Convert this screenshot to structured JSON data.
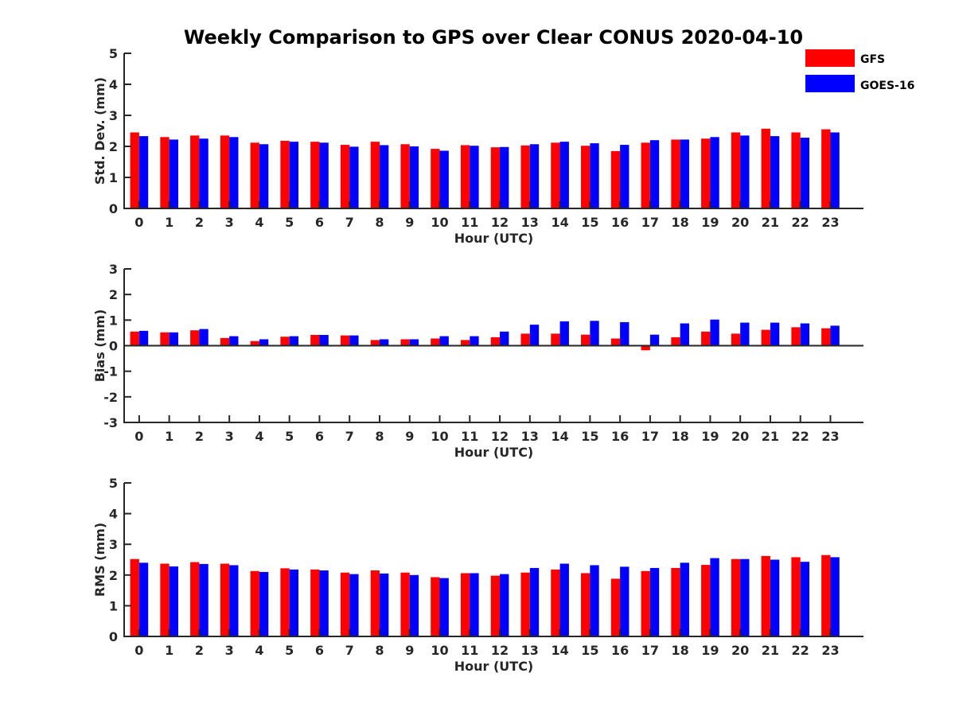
{
  "figure": {
    "title": "Weekly Comparison to GPS over Clear CONUS 2020-04-10",
    "legend": [
      {
        "name": "GFS",
        "color": "#ff0000"
      },
      {
        "name": "GOES-16",
        "color": "#0000ff"
      }
    ]
  },
  "chart_data": [
    {
      "type": "bar",
      "ylabel": "Std. Dev. (mm)",
      "xlabel": "Hour (UTC)",
      "ylim": [
        0,
        5
      ],
      "yticks": [
        0,
        1,
        2,
        3,
        4,
        5
      ],
      "categories": [
        "0",
        "1",
        "2",
        "3",
        "4",
        "5",
        "6",
        "7",
        "8",
        "9",
        "10",
        "11",
        "12",
        "13",
        "14",
        "15",
        "16",
        "17",
        "18",
        "19",
        "20",
        "21",
        "22",
        "23"
      ],
      "series": [
        {
          "name": "GFS",
          "color": "#ff0000",
          "values": [
            2.45,
            2.3,
            2.35,
            2.35,
            2.12,
            2.18,
            2.15,
            2.05,
            2.15,
            2.07,
            1.92,
            2.04,
            1.97,
            2.03,
            2.12,
            2.02,
            1.85,
            2.12,
            2.22,
            2.25,
            2.45,
            2.57,
            2.45,
            2.55
          ]
        },
        {
          "name": "GOES-16",
          "color": "#0000ff",
          "values": [
            2.33,
            2.22,
            2.25,
            2.3,
            2.07,
            2.15,
            2.12,
            1.99,
            2.04,
            2.0,
            1.86,
            2.02,
            1.98,
            2.07,
            2.15,
            2.1,
            2.05,
            2.2,
            2.22,
            2.3,
            2.35,
            2.33,
            2.28,
            2.45
          ]
        }
      ]
    },
    {
      "type": "bar",
      "ylabel": "Bias (mm)",
      "xlabel": "Hour (UTC)",
      "ylim": [
        -3,
        3
      ],
      "yticks": [
        -3,
        -2,
        -1,
        0,
        1,
        2,
        3
      ],
      "baseline": 0,
      "categories": [
        "0",
        "1",
        "2",
        "3",
        "4",
        "5",
        "6",
        "7",
        "8",
        "9",
        "10",
        "11",
        "12",
        "13",
        "14",
        "15",
        "16",
        "17",
        "18",
        "19",
        "20",
        "21",
        "22",
        "23"
      ],
      "series": [
        {
          "name": "GFS",
          "color": "#ff0000",
          "values": [
            0.55,
            0.52,
            0.6,
            0.3,
            0.18,
            0.35,
            0.42,
            0.4,
            0.22,
            0.25,
            0.28,
            0.22,
            0.33,
            0.47,
            0.47,
            0.43,
            0.28,
            -0.18,
            0.33,
            0.55,
            0.47,
            0.62,
            0.72,
            0.68
          ]
        },
        {
          "name": "GOES-16",
          "color": "#0000ff",
          "values": [
            0.58,
            0.52,
            0.65,
            0.37,
            0.25,
            0.37,
            0.42,
            0.4,
            0.25,
            0.25,
            0.37,
            0.37,
            0.55,
            0.82,
            0.95,
            0.97,
            0.92,
            0.43,
            0.87,
            1.02,
            0.9,
            0.9,
            0.87,
            0.78
          ]
        }
      ]
    },
    {
      "type": "bar",
      "ylabel": "RMS (mm)",
      "xlabel": "Hour (UTC)",
      "ylim": [
        0,
        5
      ],
      "yticks": [
        0,
        1,
        2,
        3,
        4,
        5
      ],
      "categories": [
        "0",
        "1",
        "2",
        "3",
        "4",
        "5",
        "6",
        "7",
        "8",
        "9",
        "10",
        "11",
        "12",
        "13",
        "14",
        "15",
        "16",
        "17",
        "18",
        "19",
        "20",
        "21",
        "22",
        "23"
      ],
      "series": [
        {
          "name": "GFS",
          "color": "#ff0000",
          "values": [
            2.52,
            2.37,
            2.42,
            2.37,
            2.13,
            2.22,
            2.18,
            2.08,
            2.15,
            2.08,
            1.93,
            2.06,
            1.98,
            2.08,
            2.18,
            2.06,
            1.88,
            2.13,
            2.23,
            2.33,
            2.52,
            2.62,
            2.58,
            2.65
          ]
        },
        {
          "name": "GOES-16",
          "color": "#0000ff",
          "values": [
            2.4,
            2.28,
            2.36,
            2.32,
            2.1,
            2.18,
            2.15,
            2.03,
            2.05,
            2.0,
            1.9,
            2.06,
            2.03,
            2.23,
            2.37,
            2.32,
            2.27,
            2.23,
            2.4,
            2.55,
            2.52,
            2.5,
            2.43,
            2.58
          ]
        }
      ]
    }
  ]
}
